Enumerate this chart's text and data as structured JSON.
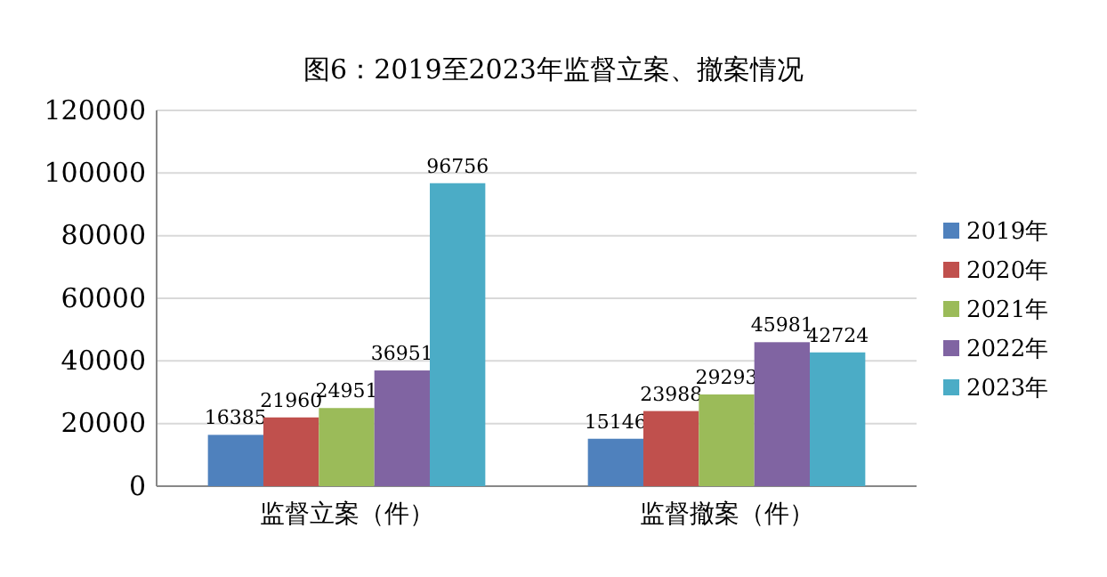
{
  "chart_data": {
    "type": "bar",
    "title": "图6：2019至2023年监督立案、撤案情况",
    "categories": [
      "监督立案（件）",
      "监督撤案（件）"
    ],
    "series": [
      {
        "name": "2019年",
        "color": "#4f81bd",
        "values": [
          16385,
          15146
        ]
      },
      {
        "name": "2020年",
        "color": "#c0504d",
        "values": [
          21960,
          23988
        ]
      },
      {
        "name": "2021年",
        "color": "#9bbb59",
        "values": [
          24951,
          29293
        ]
      },
      {
        "name": "2022年",
        "color": "#8064a2",
        "values": [
          36951,
          45981
        ]
      },
      {
        "name": "2023年",
        "color": "#4bacc6",
        "values": [
          96756,
          42724
        ]
      }
    ],
    "ylim": [
      0,
      120000
    ],
    "yticks": [
      0,
      20000,
      40000,
      60000,
      80000,
      100000,
      120000
    ],
    "grid": "y",
    "legend": "right",
    "data_labels": true
  }
}
